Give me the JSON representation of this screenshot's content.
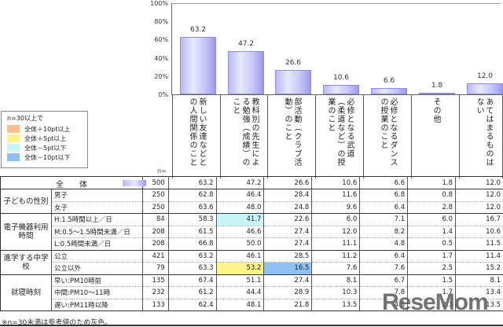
{
  "chart_data": {
    "type": "bar",
    "title": "",
    "xlabel": "",
    "ylabel": "",
    "ylim": [
      0,
      100
    ],
    "yticks": [
      "100%",
      "80%",
      "60%",
      "40%",
      "20%",
      "0%"
    ],
    "categories": [
      "新しい友達などとの人間関係のこと",
      "教科別の先生による勉強（成績）のこと",
      "部活動（クラブ活動）のこと",
      "必修となる武道（柔道など）の授業のこと",
      "必修となるダンスの授業のこと",
      "その他",
      "あてはまるものはない"
    ],
    "values": [
      63.2,
      47.2,
      26.6,
      10.6,
      6.6,
      1.8,
      12.0
    ],
    "value_labels": [
      "63.2",
      "47.2",
      "26.6",
      "10.6",
      "6.6",
      "1.8",
      "12.0"
    ],
    "grid": false,
    "legend_position": "left"
  },
  "legend": {
    "title": "n=30以上で",
    "items": [
      {
        "label": "全体＋10pt以上",
        "color": "#f9c08e"
      },
      {
        "label": "全体＋5pt以上",
        "color": "#fdf48a"
      },
      {
        "label": "全体－5pt以下",
        "color": "#c8f6f8"
      },
      {
        "label": "全体－10pt以下",
        "color": "#8fc1f5"
      }
    ]
  },
  "table": {
    "n_header": "n=",
    "total": {
      "label": "全　　体",
      "n": "500",
      "values": [
        "63.2",
        "47.2",
        "26.6",
        "10.6",
        "6.6",
        "1.8",
        "12.0"
      ]
    },
    "groups": [
      {
        "label": "子どもの性別",
        "rows": [
          {
            "label": "男子",
            "n": "250",
            "values": [
              "62.8",
              "46.4",
              "28.4",
              "11.6",
              "6.8",
              "0.8",
              "12.0"
            ],
            "highlights": {}
          },
          {
            "label": "女子",
            "n": "250",
            "values": [
              "63.6",
              "48.0",
              "24.8",
              "9.6",
              "6.4",
              "2.8",
              "12.0"
            ],
            "highlights": {}
          }
        ]
      },
      {
        "label": "電子機器利用時間",
        "rows": [
          {
            "label": "H:1.5時間以上／日",
            "n": "84",
            "values": [
              "58.3",
              "41.7",
              "22.6",
              "6.0",
              "7.1",
              "6.0",
              "16.7"
            ],
            "highlights": {
              "1": "#c8f6f8"
            }
          },
          {
            "label": "M:0.5～1.5時間未満／日",
            "n": "208",
            "values": [
              "61.5",
              "46.6",
              "27.4",
              "12.0",
              "8.2",
              "1.4",
              "10.6"
            ],
            "highlights": {}
          },
          {
            "label": "L:0.5時間未満／日",
            "n": "208",
            "values": [
              "66.8",
              "50.0",
              "27.4",
              "11.1",
              "4.8",
              "0.5",
              "11.5"
            ],
            "highlights": {}
          }
        ]
      },
      {
        "label": "進学する中学校",
        "rows": [
          {
            "label": "公立",
            "n": "421",
            "values": [
              "63.2",
              "46.1",
              "28.5",
              "11.2",
              "6.4",
              "1.7",
              "11.4"
            ],
            "highlights": {}
          },
          {
            "label": "公立以外",
            "n": "79",
            "values": [
              "63.3",
              "53.2",
              "16.5",
              "7.6",
              "7.6",
              "2.5",
              "15.2"
            ],
            "highlights": {
              "1": "#fdf48a",
              "2": "#8fc1f5"
            }
          }
        ]
      },
      {
        "label": "就寝時刻",
        "rows": [
          {
            "label": "早い:PM10時前",
            "n": "135",
            "values": [
              "67.4",
              "51.1",
              "27.4",
              "8.1",
              "6.7",
              "1.5",
              "8.1"
            ],
            "highlights": {}
          },
          {
            "label": "中間:PM10～11時",
            "n": "232",
            "values": [
              "61.2",
              "44.4",
              "28.9",
              "10.3",
              "7.8",
              "1.7",
              "13.4"
            ],
            "highlights": {}
          },
          {
            "label": "遅い:PM11時以降",
            "n": "133",
            "values": [
              "62.4",
              "48.1",
              "21.8",
              "13.5",
              "4.5",
              "2.3",
              "13.5"
            ],
            "highlights": {}
          }
        ]
      }
    ]
  },
  "footnote": "※n=30未満は参考値のため灰色。",
  "watermark": "ReseMom"
}
